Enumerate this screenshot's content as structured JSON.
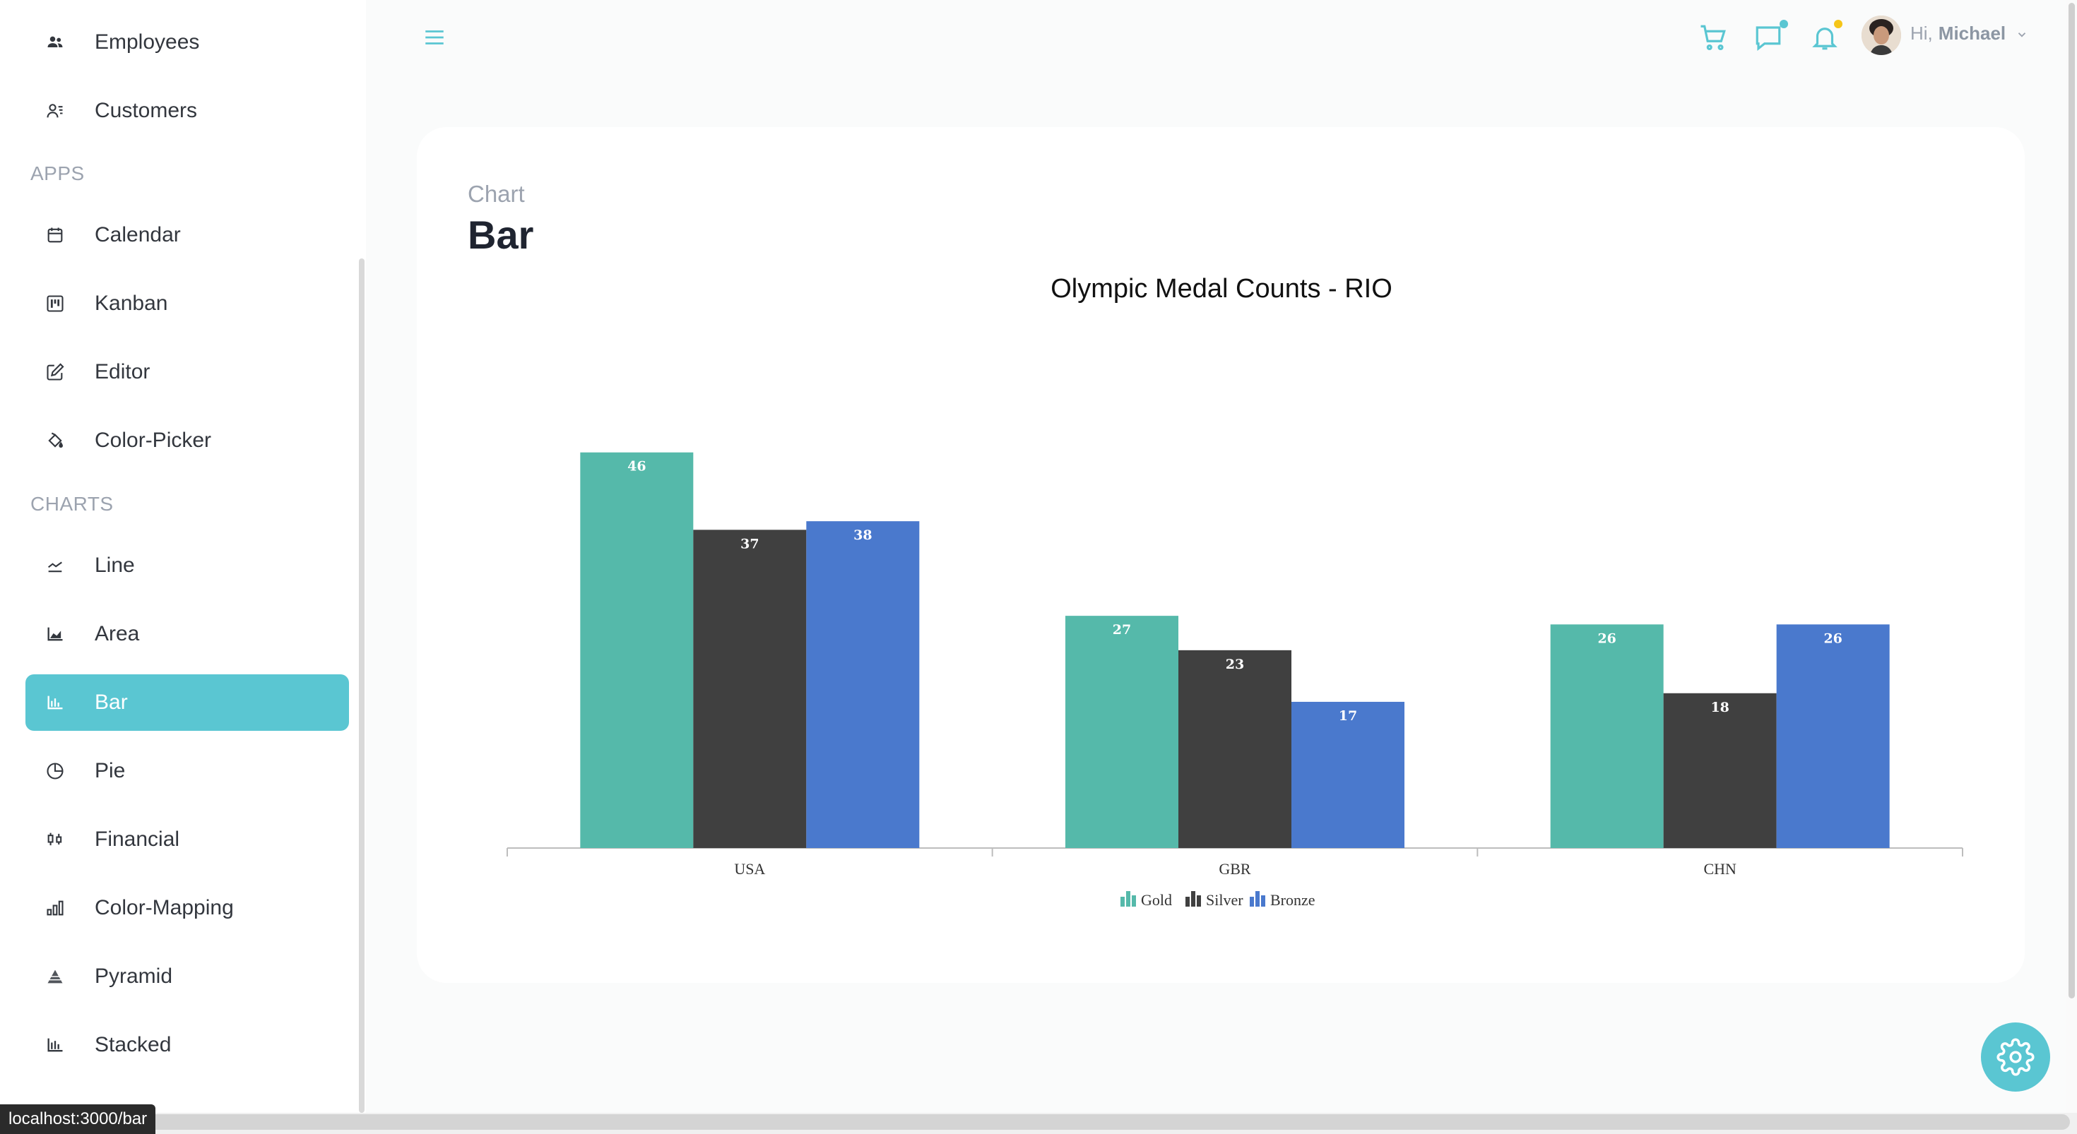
{
  "sidebar": {
    "items_top": [
      {
        "label": "Employees",
        "icon": "employees-icon"
      },
      {
        "label": "Customers",
        "icon": "customers-icon"
      }
    ],
    "sections": [
      {
        "title": "APPS",
        "items": [
          {
            "label": "Calendar",
            "icon": "calendar-icon"
          },
          {
            "label": "Kanban",
            "icon": "kanban-icon"
          },
          {
            "label": "Editor",
            "icon": "editor-icon"
          },
          {
            "label": "Color-Picker",
            "icon": "color-picker-icon"
          }
        ]
      },
      {
        "title": "CHARTS",
        "items": [
          {
            "label": "Line",
            "icon": "line-chart-icon"
          },
          {
            "label": "Area",
            "icon": "area-chart-icon"
          },
          {
            "label": "Bar",
            "icon": "bar-chart-icon",
            "active": true
          },
          {
            "label": "Pie",
            "icon": "pie-chart-icon"
          },
          {
            "label": "Financial",
            "icon": "financial-icon"
          },
          {
            "label": "Color-Mapping",
            "icon": "color-mapping-icon"
          },
          {
            "label": "Pyramid",
            "icon": "pyramid-icon"
          },
          {
            "label": "Stacked",
            "icon": "stacked-icon"
          }
        ]
      }
    ]
  },
  "header": {
    "greeting": "Hi,",
    "user_name": "Michael"
  },
  "page": {
    "subtitle": "Chart",
    "title": "Bar"
  },
  "status_bar": {
    "url": "localhost:3000/bar"
  },
  "colors": {
    "accent": "#5ac6d2",
    "gold": "#55b9aa",
    "silver": "#404040",
    "bronze": "#4a79cd"
  },
  "chart_data": {
    "type": "bar",
    "title": "Olympic Medal Counts - RIO",
    "categories": [
      "USA",
      "GBR",
      "CHN"
    ],
    "series": [
      {
        "name": "Gold",
        "values": [
          46,
          27,
          26
        ]
      },
      {
        "name": "Silver",
        "values": [
          37,
          23,
          18
        ]
      },
      {
        "name": "Bronze",
        "values": [
          38,
          17,
          26
        ]
      }
    ],
    "legend": "bottom-center",
    "grid": false,
    "data_labels": true
  }
}
